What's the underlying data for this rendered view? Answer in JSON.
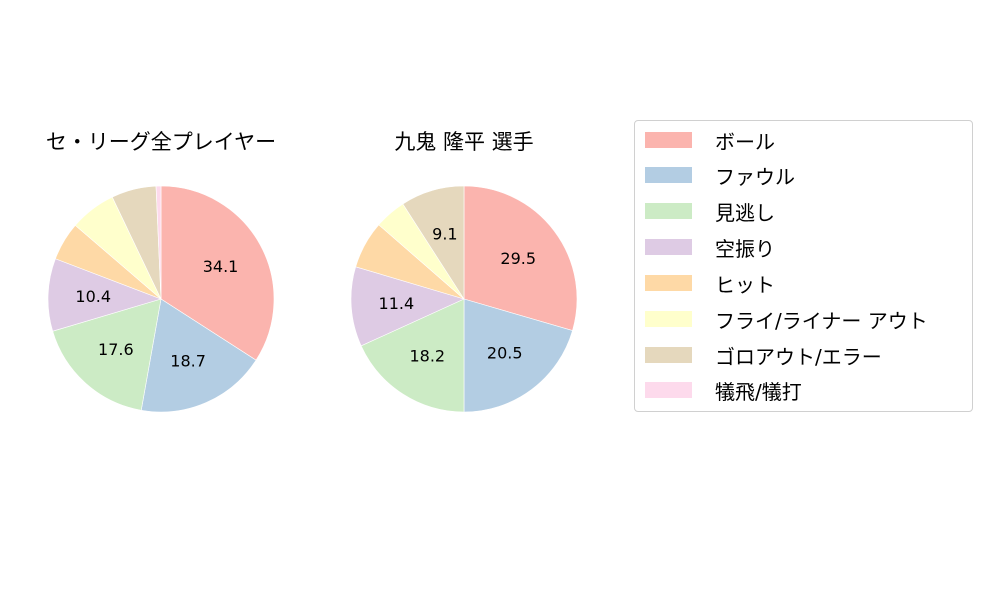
{
  "chart_data": [
    {
      "type": "pie",
      "title": "セ・リーグ全プレイヤー",
      "categories": [
        "ボール",
        "ファウル",
        "見逃し",
        "空振り",
        "ヒット",
        "フライ/ライナー アウト",
        "ゴロアウト/エラー",
        "犠飛/犠打"
      ],
      "values": [
        34.1,
        18.7,
        17.6,
        10.4,
        5.5,
        6.6,
        6.4,
        0.7
      ],
      "labels_shown": [
        "34.1",
        "18.7",
        "17.6",
        "10.4",
        "",
        "",
        "",
        ""
      ],
      "start_angle": 90,
      "direction": "clockwise"
    },
    {
      "type": "pie",
      "title": "九鬼 隆平  選手",
      "categories": [
        "ボール",
        "ファウル",
        "見逃し",
        "空振り",
        "ヒット",
        "フライ/ライナー アウト",
        "ゴロアウト/エラー",
        "犠飛/犠打"
      ],
      "values": [
        29.5,
        20.5,
        18.2,
        11.4,
        6.8,
        4.5,
        9.1,
        0.0
      ],
      "labels_shown": [
        "29.5",
        "20.5",
        "18.2",
        "11.4",
        "",
        "",
        "9.1",
        ""
      ],
      "start_angle": 90,
      "direction": "clockwise"
    }
  ],
  "titles": {
    "chart1": "セ・リーグ全プレイヤー",
    "chart2": "九鬼 隆平  選手"
  },
  "legend": {
    "items": [
      {
        "label": "ボール",
        "color": "#fbb4ae"
      },
      {
        "label": "ファウル",
        "color": "#b3cde3"
      },
      {
        "label": "見逃し",
        "color": "#ccebc5"
      },
      {
        "label": "空振り",
        "color": "#decbe4"
      },
      {
        "label": "ヒット",
        "color": "#fed9a6"
      },
      {
        "label": "フライ/ライナー アウト",
        "color": "#ffffcc"
      },
      {
        "label": "ゴロアウト/エラー",
        "color": "#e5d8bd"
      },
      {
        "label": "犠飛/犠打",
        "color": "#fddaec"
      }
    ]
  }
}
